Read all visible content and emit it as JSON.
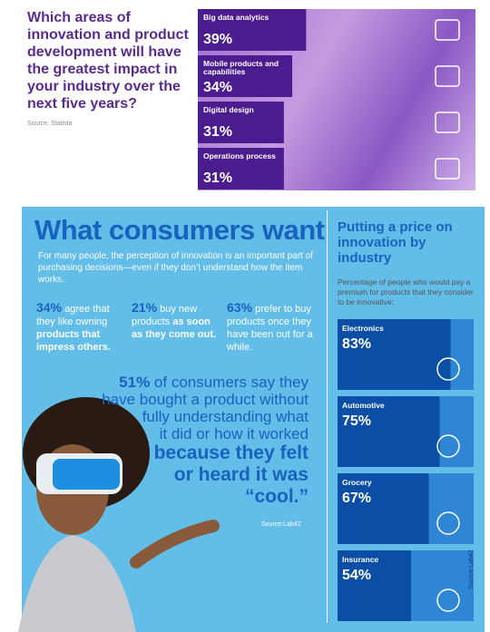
{
  "survey": {
    "title": "Which areas of innovation and product development will have the greatest impact in your industry over the next five years?",
    "source": "Source: Statista",
    "items": [
      {
        "label": "Big data analytics",
        "value": 39,
        "value_label": "39%"
      },
      {
        "label": "Mobile products and capabilities",
        "value": 34,
        "value_label": "34%"
      },
      {
        "label": "Digital design",
        "value": 31,
        "value_label": "31%"
      },
      {
        "label": "Operations process",
        "value": 31,
        "value_label": "31%"
      }
    ]
  },
  "consumers": {
    "title": "What consumers want",
    "intro": "For many people, the perception of innovation is an important part of purchasing decisions—even if they don’t understand how the item works.",
    "stats": [
      {
        "percent": "34%",
        "text": "agree that they like owning",
        "emphasis": "products that impress others."
      },
      {
        "percent": "21%",
        "text": "buy new products",
        "emphasis": "as soon as they come out."
      },
      {
        "percent": "63%",
        "text": "prefer to buy products once they have been out for a while."
      }
    ],
    "quote": {
      "highlight": "51%",
      "lines": [
        "of consumers say they",
        "have bought a product without",
        "fully understanding what",
        "it did or how it worked"
      ],
      "big_lines": [
        "because they felt",
        "or heard it was",
        "“cool.”"
      ]
    },
    "source": "Source:Lab42"
  },
  "price": {
    "title": "Putting a price on innovation by industry",
    "subtitle": "Percentage of people who would pay a premium for products that they consider to be innovative:",
    "items": [
      {
        "label": "Electronics",
        "value": 83,
        "value_label": "83%"
      },
      {
        "label": "Automotive",
        "value": 75,
        "value_label": "75%"
      },
      {
        "label": "Grocery",
        "value": 67,
        "value_label": "67%"
      },
      {
        "label": "Insurance",
        "value": 54,
        "value_label": "54%"
      }
    ],
    "source": "Source:Lab42"
  }
}
